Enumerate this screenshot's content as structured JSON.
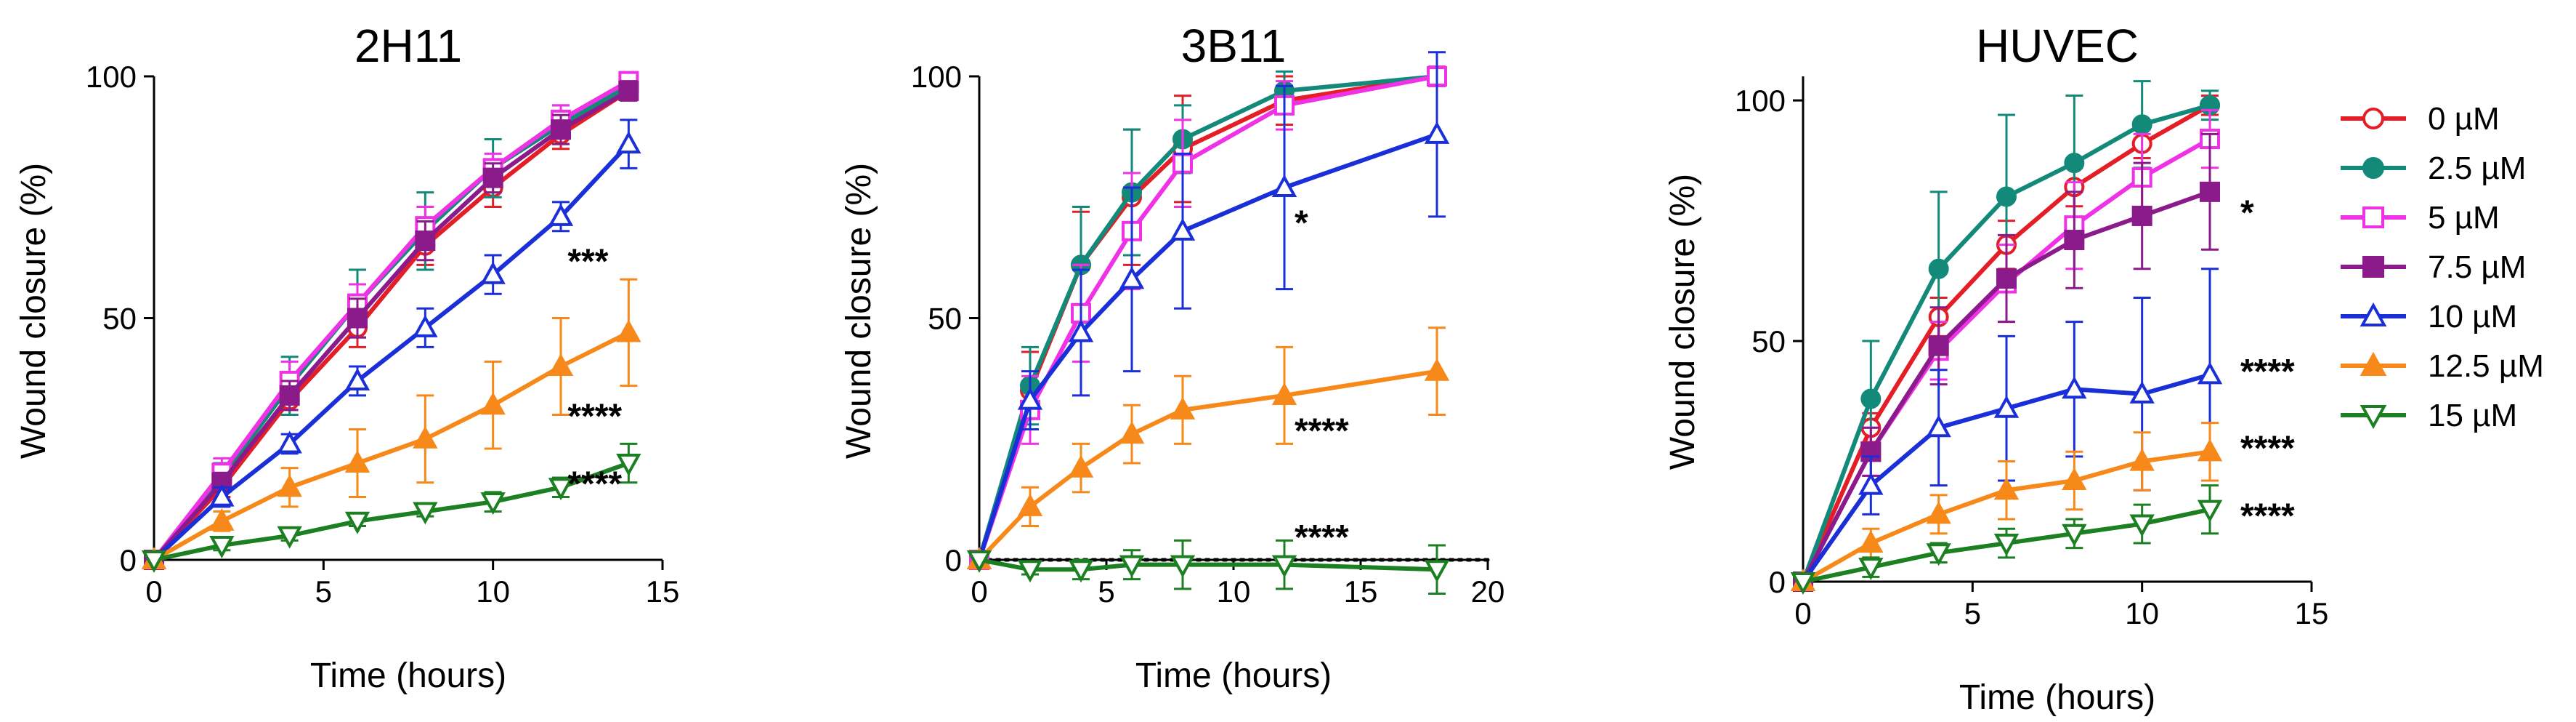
{
  "chart_data": [
    {
      "type": "line",
      "title": "2H11",
      "xlabel": "Time (hours)",
      "ylabel": "Wound closure (%)",
      "xlim": [
        0,
        15
      ],
      "ylim": [
        0,
        100
      ],
      "xticks": [
        0,
        5,
        10,
        15
      ],
      "yticks": [
        0,
        50,
        100
      ],
      "xtick_labels": [
        "0",
        "5",
        "10",
        "15"
      ],
      "ytick_labels": [
        "0",
        "50",
        "100"
      ],
      "series": [
        {
          "name": "0 µM",
          "x": [
            0,
            2,
            4,
            6,
            8,
            10,
            12,
            14
          ],
          "y": [
            0,
            15,
            33,
            48,
            65,
            77,
            88,
            97
          ],
          "err": [
            0,
            2,
            3,
            4,
            4,
            4,
            3,
            2
          ]
        },
        {
          "name": "2.5 µM",
          "x": [
            0,
            2,
            4,
            6,
            8,
            10,
            12,
            14
          ],
          "y": [
            0,
            17,
            36,
            53,
            68,
            81,
            90,
            98
          ],
          "err": [
            0,
            3,
            6,
            7,
            8,
            6,
            4,
            2
          ]
        },
        {
          "name": "5 µM",
          "x": [
            0,
            2,
            4,
            6,
            8,
            10,
            12,
            14
          ],
          "y": [
            0,
            18,
            37,
            53,
            69,
            81,
            91,
            99
          ],
          "err": [
            0,
            3,
            4,
            4,
            4,
            3,
            3,
            1
          ]
        },
        {
          "name": "7.5 µM",
          "x": [
            0,
            2,
            4,
            6,
            8,
            10,
            12,
            14
          ],
          "y": [
            0,
            16,
            34,
            50,
            66,
            79,
            89,
            97
          ],
          "err": [
            0,
            2,
            3,
            4,
            4,
            3,
            3,
            2
          ]
        },
        {
          "name": "10 µM",
          "x": [
            0,
            2,
            4,
            6,
            8,
            10,
            12,
            14
          ],
          "y": [
            0,
            13,
            24,
            37,
            48,
            59,
            71,
            86
          ],
          "err": [
            0,
            2,
            2,
            3,
            4,
            4,
            3,
            5
          ]
        },
        {
          "name": "12.5 µM",
          "x": [
            0,
            2,
            4,
            6,
            8,
            10,
            12,
            14
          ],
          "y": [
            0,
            8,
            15,
            20,
            25,
            32,
            40,
            47
          ],
          "err": [
            0,
            2,
            4,
            7,
            9,
            9,
            10,
            11
          ]
        },
        {
          "name": "15 µM",
          "x": [
            0,
            2,
            4,
            6,
            8,
            10,
            12,
            14
          ],
          "y": [
            0,
            3,
            5,
            8,
            10,
            12,
            15,
            20
          ],
          "err": [
            0,
            1,
            1,
            1,
            1,
            2,
            2,
            4
          ]
        }
      ],
      "annotations": [
        {
          "text": "***",
          "x": 12.2,
          "y": 62
        },
        {
          "text": "****",
          "x": 12.2,
          "y": 30
        },
        {
          "text": "****",
          "x": 12.2,
          "y": 16
        }
      ]
    },
    {
      "type": "line",
      "title": "3B11",
      "xlabel": "Time (hours)",
      "ylabel": "Wound closure (%)",
      "xlim": [
        0,
        20
      ],
      "ylim": [
        0,
        100
      ],
      "xticks": [
        0,
        5,
        10,
        15,
        20
      ],
      "yticks": [
        0,
        50,
        100
      ],
      "xtick_labels": [
        "0",
        "5",
        "10",
        "15",
        "20"
      ],
      "ytick_labels": [
        "0",
        "50",
        "100"
      ],
      "reference_line": {
        "y": 0,
        "style": "dotted"
      },
      "series": [
        {
          "name": "0 µM",
          "x": [
            0,
            2,
            4,
            6,
            8,
            12,
            18
          ],
          "y": [
            0,
            35,
            61,
            75,
            85,
            95,
            100
          ],
          "err": [
            0,
            8,
            11,
            14,
            11,
            5,
            2
          ]
        },
        {
          "name": "2.5 µM",
          "x": [
            0,
            2,
            4,
            6,
            8,
            12,
            18
          ],
          "y": [
            0,
            36,
            61,
            76,
            87,
            97,
            100
          ],
          "err": [
            0,
            8,
            12,
            13,
            7,
            4,
            2
          ]
        },
        {
          "name": "5 µM",
          "x": [
            0,
            2,
            4,
            6,
            8,
            12,
            18
          ],
          "y": [
            0,
            31,
            51,
            68,
            82,
            94,
            100
          ],
          "err": [
            0,
            7,
            10,
            12,
            9,
            5,
            2
          ]
        },
        {
          "name": "10 µM",
          "x": [
            0,
            2,
            4,
            6,
            8,
            12,
            18
          ],
          "y": [
            0,
            33,
            47,
            58,
            68,
            77,
            88
          ],
          "err": [
            0,
            6,
            13,
            19,
            16,
            21,
            17
          ]
        },
        {
          "name": "12.5 µM",
          "x": [
            0,
            2,
            4,
            6,
            8,
            12,
            18
          ],
          "y": [
            0,
            11,
            19,
            26,
            31,
            34,
            39
          ],
          "err": [
            0,
            4,
            5,
            6,
            7,
            10,
            9
          ]
        },
        {
          "name": "15 µM",
          "x": [
            0,
            2,
            4,
            6,
            8,
            12,
            18
          ],
          "y": [
            0,
            -2,
            -2,
            -1,
            -1,
            -1,
            -2
          ],
          "err": [
            0,
            1,
            2,
            3,
            5,
            5,
            5
          ]
        }
      ],
      "annotations": [
        {
          "text": "*",
          "x": 12.4,
          "y": 70
        },
        {
          "text": "****",
          "x": 12.4,
          "y": 27
        },
        {
          "text": "****",
          "x": 12.4,
          "y": 5
        }
      ]
    },
    {
      "type": "line",
      "title": "HUVEC",
      "xlabel": "Time (hours)",
      "ylabel": "Wound closure (%)",
      "xlim": [
        0,
        15
      ],
      "ylim": [
        0,
        105
      ],
      "xticks": [
        0,
        5,
        10,
        15
      ],
      "yticks": [
        0,
        50,
        100
      ],
      "xtick_labels": [
        "0",
        "5",
        "10",
        "15"
      ],
      "ytick_labels": [
        "0",
        "50",
        "100"
      ],
      "series": [
        {
          "name": "0 µM",
          "x": [
            0,
            2,
            4,
            6,
            8,
            10,
            12
          ],
          "y": [
            0,
            32,
            55,
            70,
            82,
            91,
            99
          ],
          "err": [
            0,
            3,
            4,
            5,
            4,
            3,
            2
          ]
        },
        {
          "name": "2.5 µM",
          "x": [
            0,
            2,
            4,
            6,
            8,
            10,
            12
          ],
          "y": [
            0,
            38,
            65,
            80,
            87,
            95,
            99
          ],
          "err": [
            0,
            12,
            16,
            17,
            14,
            9,
            3
          ]
        },
        {
          "name": "5 µM",
          "x": [
            0,
            2,
            4,
            6,
            8,
            10,
            12
          ],
          "y": [
            0,
            27,
            48,
            62,
            74,
            84,
            92
          ],
          "err": [
            0,
            5,
            6,
            8,
            9,
            9,
            6
          ]
        },
        {
          "name": "7.5 µM",
          "x": [
            0,
            2,
            4,
            6,
            8,
            10,
            12
          ],
          "y": [
            0,
            27,
            49,
            63,
            71,
            76,
            81
          ],
          "err": [
            0,
            5,
            8,
            9,
            10,
            11,
            12
          ]
        },
        {
          "name": "10 µM",
          "x": [
            0,
            2,
            4,
            6,
            8,
            10,
            12
          ],
          "y": [
            0,
            20,
            32,
            36,
            40,
            39,
            43
          ],
          "err": [
            0,
            6,
            12,
            15,
            14,
            20,
            22
          ]
        },
        {
          "name": "12.5 µM",
          "x": [
            0,
            2,
            4,
            6,
            8,
            10,
            12
          ],
          "y": [
            0,
            8,
            14,
            19,
            21,
            25,
            27
          ],
          "err": [
            0,
            3,
            4,
            6,
            6,
            6,
            6
          ]
        },
        {
          "name": "15 µM",
          "x": [
            0,
            2,
            4,
            6,
            8,
            10,
            12
          ],
          "y": [
            0,
            3,
            6,
            8,
            10,
            12,
            15
          ],
          "err": [
            0,
            2,
            2,
            3,
            3,
            4,
            5
          ]
        }
      ],
      "annotations": [
        {
          "text": "*",
          "x": 12.9,
          "y": 77
        },
        {
          "text": "****",
          "x": 12.9,
          "y": 44
        },
        {
          "text": "****",
          "x": 12.9,
          "y": 28
        },
        {
          "text": "****",
          "x": 12.9,
          "y": 14
        }
      ]
    }
  ],
  "legend": {
    "placement": "right",
    "entries": [
      {
        "name": "0 µM",
        "color": "#e41e26",
        "marker": "circle",
        "filled": false
      },
      {
        "name": "2.5 µM",
        "color": "#13897a",
        "marker": "circle",
        "filled": true
      },
      {
        "name": "5 µM",
        "color": "#f032e6",
        "marker": "square",
        "filled": false
      },
      {
        "name": "7.5 µM",
        "color": "#8b1a8b",
        "marker": "square",
        "filled": true
      },
      {
        "name": "10 µM",
        "color": "#1a2fd8",
        "marker": "triangle-up",
        "filled": false
      },
      {
        "name": "12.5 µM",
        "color": "#f7891b",
        "marker": "triangle-up",
        "filled": true
      },
      {
        "name": "15 µM",
        "color": "#1c7f22",
        "marker": "triangle-down",
        "filled": false
      }
    ]
  }
}
